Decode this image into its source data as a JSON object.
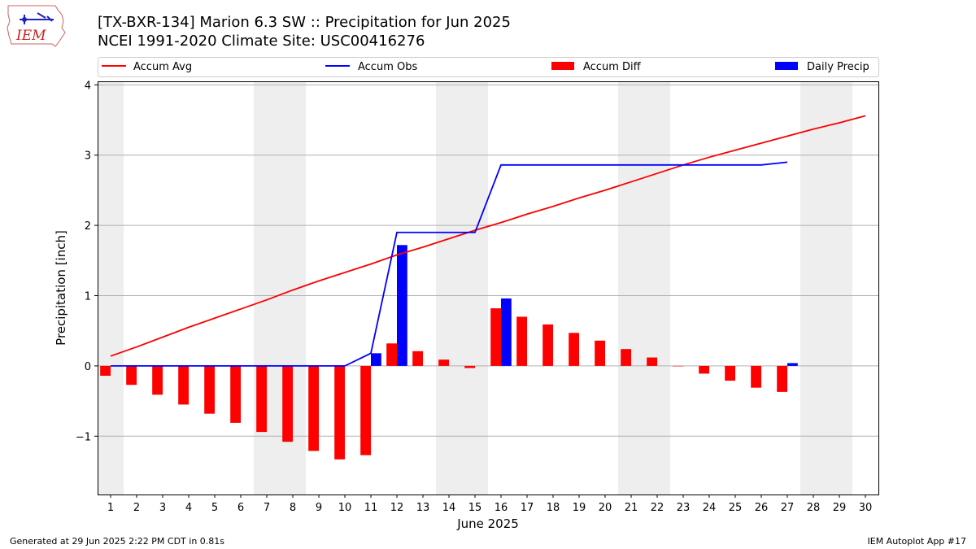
{
  "header": {
    "title_line1": "[TX-BXR-134] Marion 6.3 SW :: Precipitation for Jun 2025",
    "title_line2": "NCEI 1991-2020 Climate Site: USC00416276",
    "logo_text": "IEM"
  },
  "footer": {
    "generated": "Generated at 29 Jun 2025 2:22 PM CDT in 0.81s",
    "app": "IEM Autoplot App #17"
  },
  "colors": {
    "accum_avg": "#ff0000",
    "accum_obs": "#0000ff",
    "accum_diff": "#ff0000",
    "daily_precip": "#0000ff",
    "weekend_shade": "#eeeeee",
    "grid": "#b0b0b0"
  },
  "chart_data": {
    "type": "bar",
    "xlabel": "June 2025",
    "ylabel": "Precipitation [inch]",
    "ylim": [
      -1.83,
      4.05
    ],
    "yticks": [
      -1,
      0,
      1,
      2,
      3,
      4
    ],
    "ytick_labels": [
      "−1",
      "0",
      "1",
      "2",
      "3",
      "4"
    ],
    "xlim": [
      0.5,
      30.5
    ],
    "days": [
      1,
      2,
      3,
      4,
      5,
      6,
      7,
      8,
      9,
      10,
      11,
      12,
      13,
      14,
      15,
      16,
      17,
      18,
      19,
      20,
      21,
      22,
      23,
      24,
      25,
      26,
      27,
      28,
      29,
      30
    ],
    "grid": "horizontal",
    "legend_position": "top",
    "weekend_shading": [
      [
        0.5,
        1.5
      ],
      [
        6.5,
        8.5
      ],
      [
        13.5,
        15.5
      ],
      [
        20.5,
        22.5
      ],
      [
        27.5,
        29.5
      ]
    ],
    "series": [
      {
        "name": "Accum Avg",
        "kind": "line",
        "x": [
          1,
          2,
          3,
          4,
          5,
          6,
          7,
          8,
          9,
          10,
          11,
          12,
          13,
          14,
          15,
          16,
          17,
          18,
          19,
          20,
          21,
          22,
          23,
          24,
          25,
          26,
          27,
          28,
          29,
          30
        ],
        "values": [
          0.14,
          0.27,
          0.41,
          0.55,
          0.68,
          0.81,
          0.94,
          1.08,
          1.21,
          1.33,
          1.45,
          1.58,
          1.69,
          1.81,
          1.93,
          2.04,
          2.16,
          2.27,
          2.39,
          2.5,
          2.62,
          2.74,
          2.86,
          2.97,
          3.07,
          3.17,
          3.27,
          3.37,
          3.46,
          3.56
        ]
      },
      {
        "name": "Accum Obs",
        "kind": "line",
        "x": [
          1,
          2,
          3,
          4,
          5,
          6,
          7,
          8,
          9,
          10,
          11,
          12,
          13,
          14,
          15,
          16,
          17,
          18,
          19,
          20,
          21,
          22,
          23,
          24,
          25,
          26,
          27
        ],
        "values": [
          0,
          0,
          0,
          0,
          0,
          0,
          0,
          0,
          0,
          0,
          0.18,
          1.9,
          1.9,
          1.9,
          1.9,
          2.86,
          2.86,
          2.86,
          2.86,
          2.86,
          2.86,
          2.86,
          2.86,
          2.86,
          2.86,
          2.86,
          2.9
        ]
      },
      {
        "name": "Accum Diff",
        "kind": "bar",
        "x": [
          1,
          2,
          3,
          4,
          5,
          6,
          7,
          8,
          9,
          10,
          11,
          12,
          13,
          14,
          15,
          16,
          17,
          18,
          19,
          20,
          21,
          22,
          23,
          24,
          25,
          26,
          27
        ],
        "values": [
          -0.14,
          -0.27,
          -0.41,
          -0.55,
          -0.68,
          -0.81,
          -0.94,
          -1.08,
          -1.21,
          -1.33,
          -1.27,
          0.32,
          0.21,
          0.09,
          -0.03,
          0.82,
          0.7,
          0.59,
          0.47,
          0.36,
          0.24,
          0.12,
          0.0,
          -0.11,
          -0.21,
          -0.31,
          -0.37
        ]
      },
      {
        "name": "Daily Precip",
        "kind": "bar",
        "x": [
          11,
          12,
          16,
          27
        ],
        "values": [
          0.18,
          1.72,
          0.96,
          0.04
        ]
      }
    ]
  }
}
